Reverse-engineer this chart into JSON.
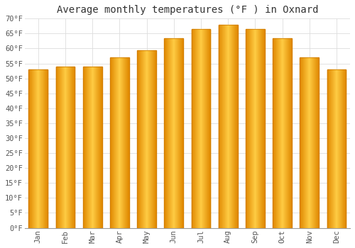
{
  "title": "Average monthly temperatures (°F ) in Oxnard",
  "months": [
    "Jan",
    "Feb",
    "Mar",
    "Apr",
    "May",
    "Jun",
    "Jul",
    "Aug",
    "Sep",
    "Oct",
    "Nov",
    "Dec"
  ],
  "values": [
    53,
    54,
    54,
    57,
    59.5,
    63.5,
    66.5,
    68,
    66.5,
    63.5,
    57,
    53
  ],
  "bar_color_main": "#FFA820",
  "bar_color_edge": "#E07800",
  "bar_color_light": "#FFD060",
  "ylim": [
    0,
    70
  ],
  "yticks": [
    0,
    5,
    10,
    15,
    20,
    25,
    30,
    35,
    40,
    45,
    50,
    55,
    60,
    65,
    70
  ],
  "ytick_labels": [
    "0°F",
    "5°F",
    "10°F",
    "15°F",
    "20°F",
    "25°F",
    "30°F",
    "35°F",
    "40°F",
    "45°F",
    "50°F",
    "55°F",
    "60°F",
    "65°F",
    "70°F"
  ],
  "background_color": "#ffffff",
  "plot_bg_color": "#ffffff",
  "grid_color": "#dddddd",
  "title_fontsize": 10,
  "tick_fontsize": 7.5,
  "bar_width": 0.7
}
